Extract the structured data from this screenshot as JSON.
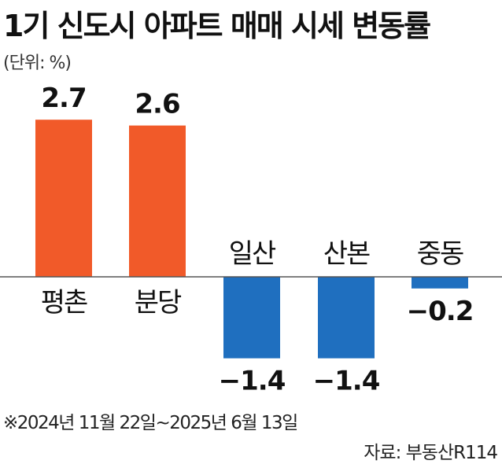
{
  "header": {
    "title": "1기 신도시 아파트 매매 시세 변동률",
    "unit": "(단위: %)"
  },
  "colors": {
    "positive": "#f15a29",
    "negative": "#1f6fbf",
    "baseline": "#555555"
  },
  "chart_data": {
    "type": "bar",
    "categories": [
      "평촌",
      "분당",
      "일산",
      "산본",
      "중동"
    ],
    "values": [
      2.7,
      2.6,
      -1.4,
      -1.4,
      -0.2
    ],
    "value_labels": [
      "2.7",
      "2.6",
      "−1.4",
      "−1.4",
      "−0.2"
    ],
    "title": "1기 신도시 아파트 매매 시세 변동률",
    "ylabel": "",
    "xlabel": "",
    "grid": false
  },
  "footer": {
    "note": "※2024년 11월 22일~2025년 6월 13일",
    "source": "자료: 부동산R114"
  }
}
